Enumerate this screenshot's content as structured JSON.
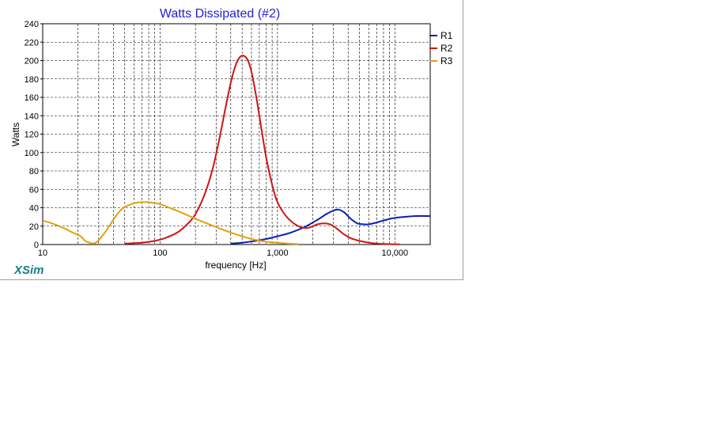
{
  "brand": "XSim",
  "chart_data": {
    "type": "line",
    "title": "Watts Dissipated (#2)",
    "xlabel": "frequency [Hz]",
    "ylabel": "Watts",
    "xscale": "log",
    "xlim": [
      10,
      20000
    ],
    "ylim": [
      0,
      240
    ],
    "xticks": [
      10,
      100,
      1000,
      10000
    ],
    "xtick_labels": [
      "10",
      "100",
      "1,000",
      "10,000"
    ],
    "yticks": [
      0,
      20,
      40,
      60,
      80,
      100,
      120,
      140,
      160,
      180,
      200,
      220,
      240
    ],
    "grid": true,
    "legend": "top-right",
    "series": [
      {
        "name": "R1",
        "color": "#0a1eb4",
        "x": [
          400,
          500,
          650,
          800,
          1000,
          1300,
          1700,
          2200,
          2600,
          3000,
          3300,
          3700,
          4200,
          4800,
          5400,
          6000,
          7000,
          8500,
          10000,
          12000,
          15000,
          20000
        ],
        "y": [
          1,
          2,
          4,
          6,
          9,
          13,
          19,
          27,
          33,
          37,
          38,
          35,
          28,
          23,
          22,
          22,
          24,
          27,
          29,
          30,
          31,
          31
        ]
      },
      {
        "name": "R2",
        "color": "#d01414",
        "x": [
          50,
          70,
          90,
          110,
          140,
          170,
          200,
          240,
          280,
          320,
          360,
          400,
          440,
          480,
          520,
          560,
          600,
          650,
          700,
          800,
          900,
          1000,
          1200,
          1500,
          1800,
          2000,
          2200,
          2500,
          2800,
          3000,
          3300,
          3700,
          4200,
          5000,
          6000,
          7000,
          8500,
          10000,
          11000
        ],
        "y": [
          1,
          2,
          4,
          7,
          13,
          22,
          33,
          55,
          82,
          115,
          148,
          176,
          195,
          204,
          205,
          200,
          188,
          165,
          140,
          95,
          65,
          46,
          30,
          20,
          18,
          20,
          22,
          23,
          22,
          20,
          16,
          11,
          7,
          4,
          2,
          1,
          0.5,
          0.3,
          0.2
        ]
      },
      {
        "name": "R3",
        "color": "#e0a010",
        "x": [
          10,
          12,
          15,
          18,
          21,
          23,
          25,
          27,
          29,
          32,
          36,
          40,
          45,
          50,
          55,
          60,
          70,
          80,
          90,
          100,
          120,
          150,
          200,
          250,
          300,
          400,
          500,
          600,
          800,
          1000,
          1200,
          1500
        ],
        "y": [
          26,
          23,
          18,
          13,
          9,
          4,
          2,
          1,
          3,
          9,
          18,
          27,
          36,
          41,
          43,
          45,
          46,
          46,
          45,
          44,
          40,
          35,
          28,
          23,
          19,
          13,
          9,
          6,
          3,
          2,
          1,
          0.5
        ]
      }
    ]
  }
}
